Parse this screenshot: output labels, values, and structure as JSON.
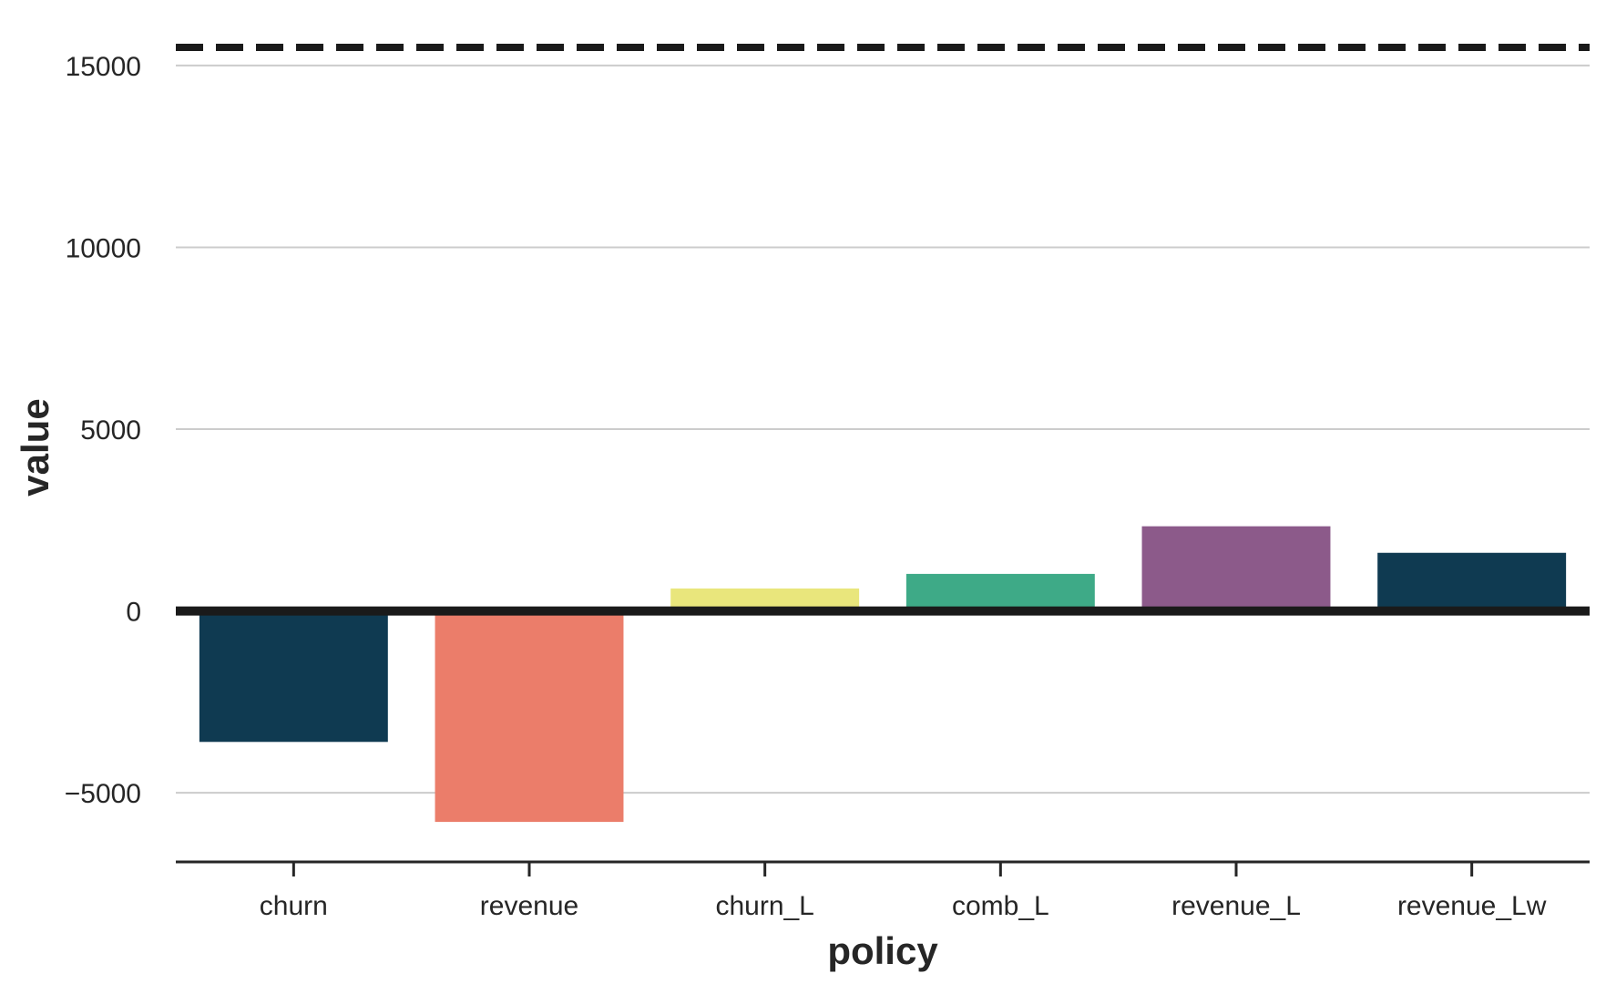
{
  "chart_data": {
    "type": "bar",
    "title": "",
    "xlabel": "policy",
    "ylabel": "value",
    "categories": [
      "churn",
      "revenue",
      "churn_L",
      "comb_L",
      "revenue_L",
      "revenue_Lw"
    ],
    "values": [
      -3600,
      -5800,
      620,
      1020,
      2330,
      1600
    ],
    "colors": [
      "#0f3a51",
      "#eb7d6a",
      "#e9e67c",
      "#3eaa87",
      "#8c5a8a",
      "#0f3a51"
    ],
    "ylim": [
      -6900,
      15800
    ],
    "yticks": [
      -5000,
      0,
      5000,
      10000,
      15000
    ],
    "ytick_labels": [
      "−5000",
      "0",
      "5000",
      "10000",
      "15000"
    ],
    "grid": "horizontal",
    "reference_lines": [
      {
        "value": 0,
        "style": "solid",
        "color": "#1a1a1a"
      },
      {
        "value": 15500,
        "style": "dashed",
        "color": "#1a1a1a"
      }
    ]
  }
}
